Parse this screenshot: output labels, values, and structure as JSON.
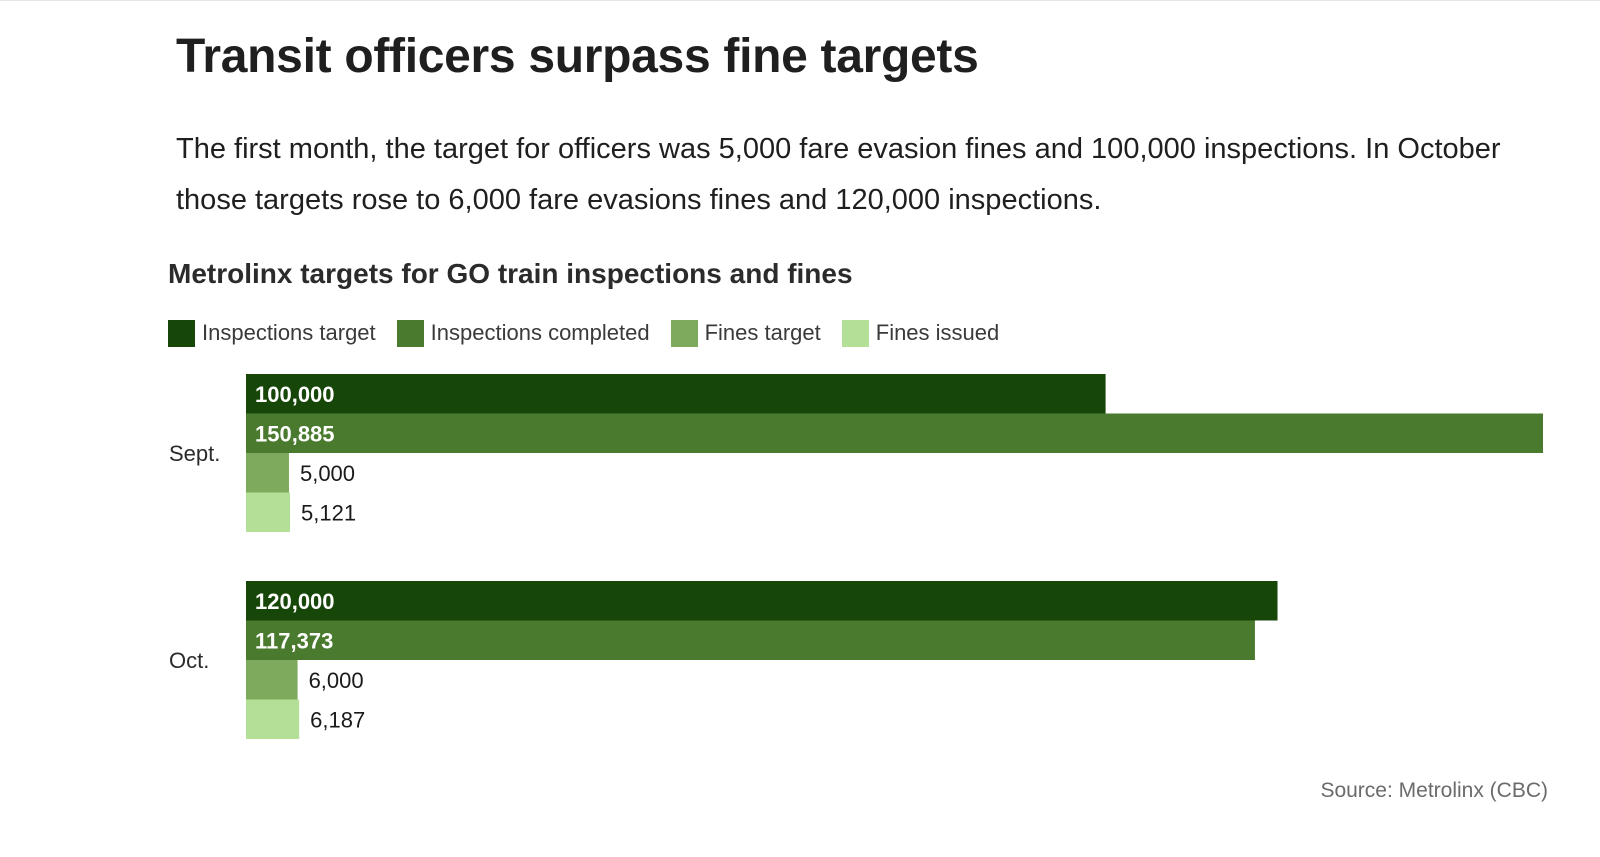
{
  "header": {
    "title": "Transit officers surpass fine targets",
    "description": "The first month, the target for officers was 5,000 fare evasion fines and 100,000 inspections. In October those targets rose to 6,000 fare evasions fines and 120,000 inspections."
  },
  "footer": {
    "source": "Source: Metrolinx (CBC)"
  },
  "colors": {
    "inspections_target": "#174708",
    "inspections_completed": "#4a7a2e",
    "fines_target": "#7daa5c",
    "fines_issued": "#b3e096"
  },
  "chart_data": {
    "type": "bar",
    "orientation": "horizontal",
    "title": "Metrolinx targets for GO train inspections and fines",
    "categories": [
      "Sept.",
      "Oct."
    ],
    "series": [
      {
        "name": "Inspections target",
        "values": [
          100000,
          120000
        ],
        "labels": [
          "100,000",
          "120,000"
        ],
        "color": "#174708"
      },
      {
        "name": "Inspections completed",
        "values": [
          150885,
          117373
        ],
        "labels": [
          "150,885",
          "117,373"
        ],
        "color": "#4a7a2e"
      },
      {
        "name": "Fines target",
        "values": [
          5000,
          6000
        ],
        "labels": [
          "5,000",
          "6,000"
        ],
        "color": "#7daa5c"
      },
      {
        "name": "Fines issued",
        "values": [
          5121,
          6187
        ],
        "labels": [
          "5,121",
          "6,187"
        ],
        "color": "#b3e096"
      }
    ],
    "xlim": [
      0,
      150885
    ],
    "legend": "top-left",
    "grid": false,
    "xlabel": "",
    "ylabel": ""
  }
}
